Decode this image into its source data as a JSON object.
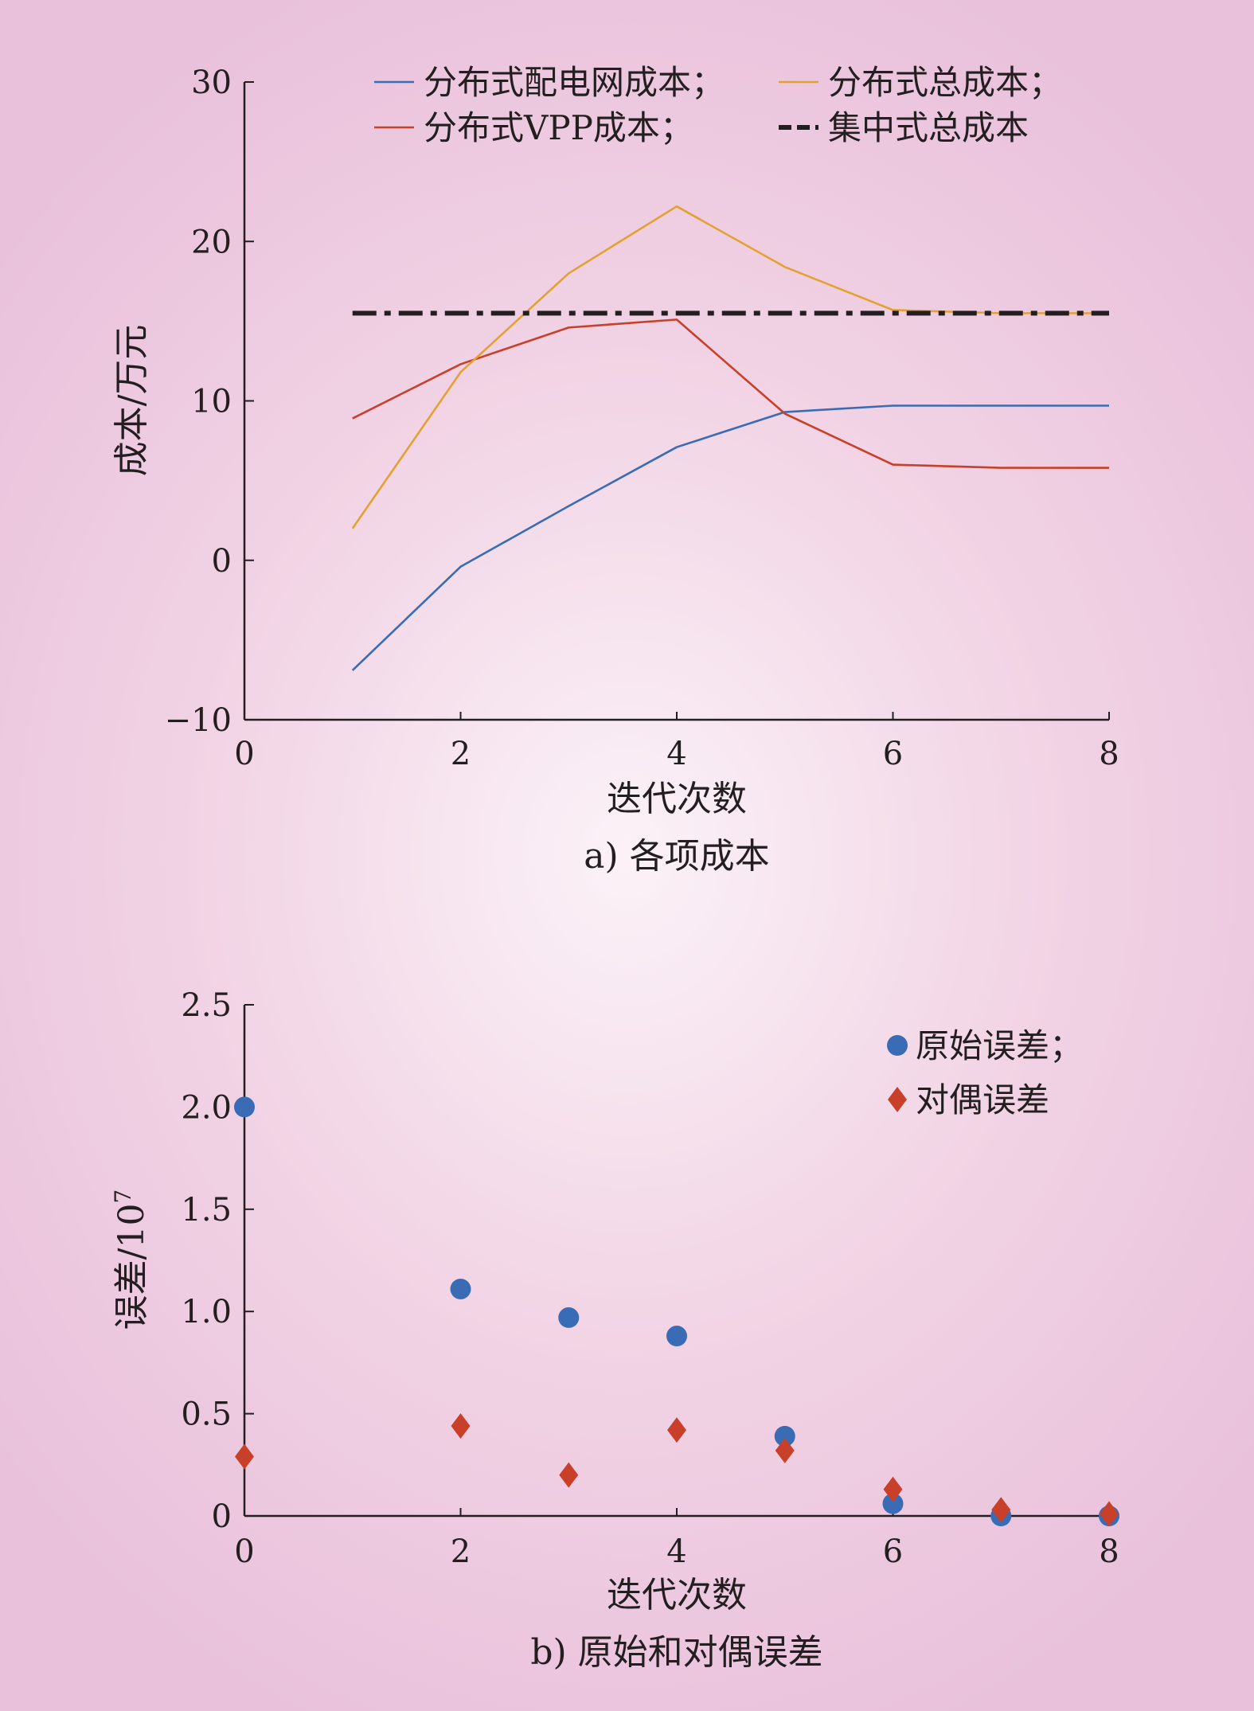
{
  "chart_data": [
    {
      "type": "line",
      "caption": "a) 各项成本",
      "xlabel": "迭代次数",
      "ylabel": "成本/万元",
      "xlim": [
        0,
        8
      ],
      "ylim": [
        -10,
        30
      ],
      "xticks": [
        "0",
        "2",
        "4",
        "6",
        "8"
      ],
      "yticks": [
        "30",
        "20",
        "10",
        "0",
        "−10"
      ],
      "grid": false,
      "legend_position": "top",
      "series": [
        {
          "name": "分布式配电网成本；",
          "color": "#3a6cb5",
          "style": "solid",
          "x": [
            1,
            2,
            3,
            4,
            5,
            6,
            7,
            8
          ],
          "y": [
            -6.9,
            -0.4,
            3.4,
            7.1,
            9.3,
            9.7,
            9.7,
            9.7
          ]
        },
        {
          "name": "分布式VPP成本；",
          "color": "#c8402a",
          "style": "solid",
          "x": [
            1,
            2,
            3,
            4,
            5,
            6,
            7,
            8
          ],
          "y": [
            8.9,
            12.3,
            14.6,
            15.1,
            9.2,
            6.0,
            5.8,
            5.8
          ]
        },
        {
          "name": "分布式总成本；",
          "color": "#e2a233",
          "style": "solid",
          "x": [
            1,
            2,
            3,
            4,
            5,
            6,
            7,
            8
          ],
          "y": [
            2.0,
            11.8,
            18.0,
            22.2,
            18.4,
            15.7,
            15.5,
            15.5
          ]
        },
        {
          "name": "集中式总成本",
          "color": "#231f20",
          "style": "dashdot",
          "x": [
            1,
            8
          ],
          "y": [
            15.5,
            15.5
          ]
        }
      ]
    },
    {
      "type": "scatter",
      "caption": "b) 原始和对偶误差",
      "xlabel": "迭代次数",
      "ylabel": "误差/10",
      "ylabel_superscript": "7",
      "xlim": [
        0,
        8
      ],
      "ylim": [
        0,
        2.5
      ],
      "xticks": [
        "0",
        "2",
        "4",
        "6",
        "8"
      ],
      "yticks": [
        "2.5",
        "2.0",
        "1.5",
        "1.0",
        "0.5",
        "0"
      ],
      "grid": false,
      "legend_position": "top-right",
      "series": [
        {
          "name": "原始误差；",
          "color": "#3a6cb5",
          "marker": "circle",
          "x": [
            0,
            2,
            3,
            4,
            5,
            6,
            7,
            8
          ],
          "y": [
            2.0,
            1.11,
            0.97,
            0.88,
            0.39,
            0.06,
            0.0,
            0.0
          ]
        },
        {
          "name": "对偶误差",
          "color": "#c8402a",
          "marker": "diamond",
          "x": [
            0,
            2,
            3,
            4,
            5,
            6,
            7,
            8
          ],
          "y": [
            0.29,
            0.44,
            0.2,
            0.42,
            0.32,
            0.13,
            0.03,
            0.01
          ]
        }
      ]
    }
  ]
}
